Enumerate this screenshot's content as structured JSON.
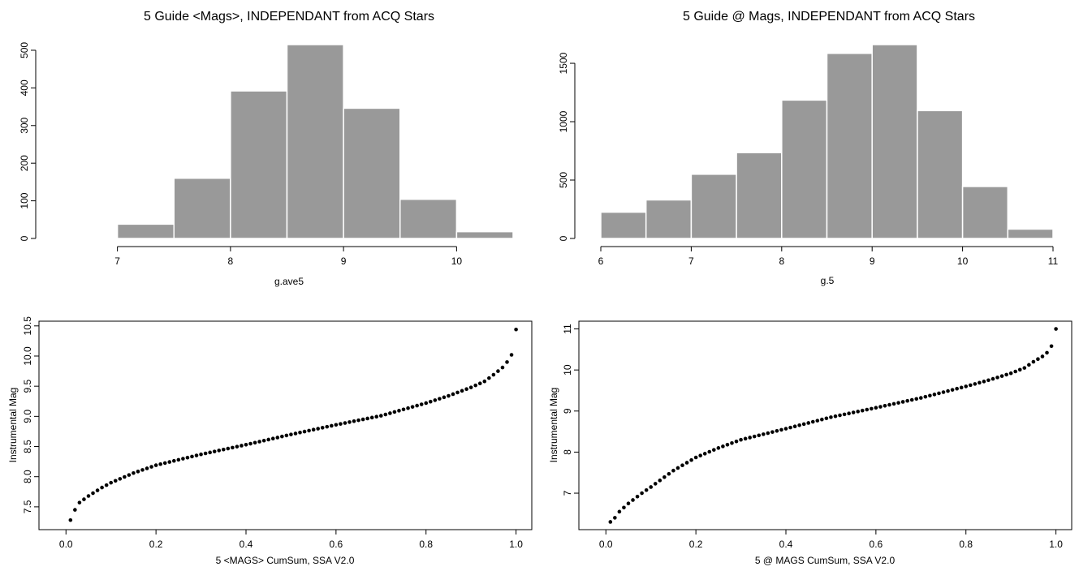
{
  "chart_data": [
    {
      "type": "histogram",
      "title": "5 Guide <Mags>, INDEPENDANT from ACQ Stars",
      "xlabel": "g.ave5",
      "ylabel": "",
      "xlim": [
        6.5,
        10.5
      ],
      "ylim": [
        0,
        515
      ],
      "xticks": [
        7,
        8,
        9,
        10
      ],
      "yticks": [
        0,
        100,
        200,
        300,
        400,
        500
      ],
      "bin_width": 0.5,
      "bins": [
        6.5,
        7.0,
        7.5,
        8.0,
        8.5,
        9.0,
        9.5,
        10.0
      ],
      "values": [
        2,
        38,
        160,
        392,
        515,
        346,
        104,
        18
      ],
      "grid": false
    },
    {
      "type": "histogram",
      "title": "5 Guide @ Mags, INDEPENDANT from ACQ Stars",
      "xlabel": "g.5",
      "ylabel": "",
      "xlim": [
        6,
        11
      ],
      "ylim": [
        0,
        1660
      ],
      "xticks": [
        6,
        7,
        8,
        9,
        10,
        11
      ],
      "yticks": [
        0,
        500,
        1000,
        1500
      ],
      "bin_width": 0.5,
      "bins": [
        6.0,
        6.5,
        7.0,
        7.5,
        8.0,
        8.5,
        9.0,
        9.5,
        10.0,
        10.5
      ],
      "values": [
        225,
        330,
        550,
        735,
        1185,
        1585,
        1660,
        1095,
        445,
        80
      ],
      "grid": false
    },
    {
      "type": "scatter",
      "title": "",
      "xlabel": "5 <MAGS> CumSum, SSA V2.0",
      "ylabel": "Instrumental Mag",
      "xlim": [
        0,
        1
      ],
      "ylim": [
        7.25,
        10.45
      ],
      "xticks": [
        0.0,
        0.2,
        0.4,
        0.6,
        0.8,
        1.0
      ],
      "yticks": [
        7.5,
        8.0,
        8.5,
        9.0,
        9.5,
        10.0,
        10.5
      ],
      "n_points": 100,
      "quantile_anchors": {
        "p": [
          0.01,
          0.02,
          0.03,
          0.05,
          0.08,
          0.1,
          0.15,
          0.2,
          0.3,
          0.4,
          0.5,
          0.6,
          0.7,
          0.8,
          0.85,
          0.9,
          0.93,
          0.95,
          0.97,
          0.98,
          0.99,
          1.0
        ],
        "y": [
          7.28,
          7.45,
          7.57,
          7.68,
          7.82,
          7.9,
          8.06,
          8.19,
          8.37,
          8.53,
          8.7,
          8.86,
          9.01,
          9.22,
          9.34,
          9.48,
          9.58,
          9.69,
          9.81,
          9.9,
          10.02,
          10.44
        ]
      },
      "grid": false
    },
    {
      "type": "scatter",
      "title": "",
      "xlabel": "5 @ MAGS CumSum, SSA V2.0",
      "ylabel": "Instrumental Mag",
      "xlim": [
        0,
        1
      ],
      "ylim": [
        6.3,
        11.0
      ],
      "xticks": [
        0.0,
        0.2,
        0.4,
        0.6,
        0.8,
        1.0
      ],
      "yticks": [
        7,
        8,
        9,
        10,
        11
      ],
      "n_points": 100,
      "quantile_anchors": {
        "p": [
          0.01,
          0.02,
          0.03,
          0.05,
          0.08,
          0.1,
          0.15,
          0.2,
          0.25,
          0.3,
          0.4,
          0.5,
          0.6,
          0.7,
          0.8,
          0.85,
          0.9,
          0.93,
          0.95,
          0.97,
          0.98,
          0.99,
          1.0
        ],
        "y": [
          6.3,
          6.4,
          6.55,
          6.75,
          7.0,
          7.15,
          7.55,
          7.87,
          8.1,
          8.3,
          8.57,
          8.85,
          9.08,
          9.32,
          9.6,
          9.75,
          9.92,
          10.05,
          10.2,
          10.33,
          10.42,
          10.58,
          11.0
        ]
      },
      "grid": false
    }
  ]
}
